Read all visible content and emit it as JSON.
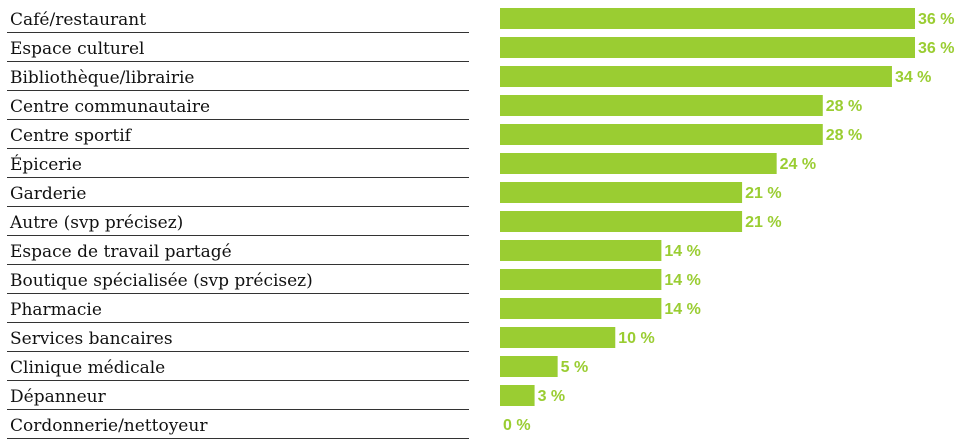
{
  "chart_data": {
    "type": "bar",
    "orientation": "horizontal",
    "categories": [
      "Café/restaurant",
      "Espace culturel",
      "Bibliothèque/librairie",
      "Centre communautaire",
      "Centre sportif",
      "Épicerie",
      "Garderie",
      "Autre (svp précisez)",
      "Espace de travail partagé",
      "Boutique spécialisée (svp précisez)",
      "Pharmacie",
      "Services bancaires",
      "Clinique médicale",
      "Dépanneur",
      "Cordonnerie/nettoyeur"
    ],
    "values": [
      36,
      36,
      34,
      28,
      28,
      24,
      21,
      21,
      14,
      14,
      14,
      10,
      5,
      3,
      0
    ],
    "value_labels": [
      "36 %",
      "36 %",
      "34 %",
      "28 %",
      "28 %",
      "24 %",
      "21 %",
      "21 %",
      "14 %",
      "14 %",
      "14 %",
      "10 %",
      "5 %",
      "3 %",
      "0 %"
    ],
    "xlim": [
      0,
      36
    ],
    "grid": false,
    "legend": "none",
    "bar_color": "#9ACD32",
    "label_color": "#9ACD32",
    "separator_color": "#333333"
  }
}
